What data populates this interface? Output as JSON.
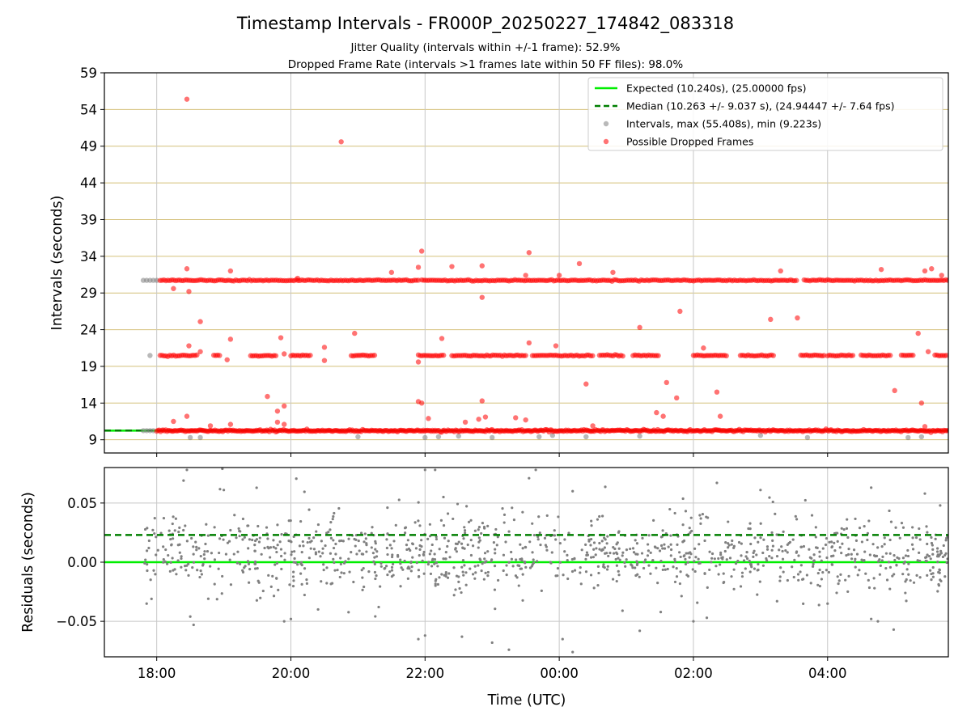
{
  "chart_data": [
    {
      "type": "scatter",
      "title": "Timestamp Intervals - FR000P_20250227_174842_083318",
      "subtitle_lines": [
        "Jitter Quality (intervals within +/-1 frame): 52.9%",
        "Dropped Frame Rate (intervals >1 frames late within 50 FF files): 98.0%"
      ],
      "ylabel": "Intervals (seconds)",
      "xlabel": "",
      "x_unit": "hours since 18:00 UTC",
      "xlim": [
        -0.78,
        11.8
      ],
      "ylim": [
        7.2,
        59
      ],
      "x_ticks": [
        0,
        2,
        4,
        6,
        8,
        10
      ],
      "x_tick_labels": [
        "18:00",
        "20:00",
        "22:00",
        "00:00",
        "02:00",
        "04:00"
      ],
      "y_ticks": [
        9,
        14,
        19,
        24,
        29,
        34,
        39,
        44,
        49,
        54,
        59
      ],
      "y_tick_labels": [
        "9",
        "14",
        "19",
        "24",
        "29",
        "34",
        "39",
        "44",
        "49",
        "54",
        "59"
      ],
      "grid": true,
      "legend_placement": "top-right",
      "legend": [
        {
          "label": "Expected (10.240s), (25.00000 fps)",
          "kind": "solid-line",
          "color": "#00ee00"
        },
        {
          "label": "Median (10.263 +/- 9.037 s), (24.94447 +/- 7.64 fps)",
          "kind": "dashed-line",
          "color": "#007f00"
        },
        {
          "label": "Intervals, max (55.408s), min (9.223s)",
          "kind": "marker",
          "color": "#808080"
        },
        {
          "label": "Possible Dropped Frames",
          "kind": "marker",
          "color": "#ff0000"
        }
      ],
      "expected_line": {
        "y": 10.24,
        "color": "#00ee00"
      },
      "median_line": {
        "y": 10.263,
        "color": "#007f00"
      },
      "series": [
        {
          "name": "Intervals, max (55.408s), min (9.223s)",
          "color": "#808080",
          "points": [
            [
              -0.2,
              30.72
            ],
            [
              -0.15,
              30.72
            ],
            [
              -0.1,
              30.72
            ],
            [
              -0.05,
              30.72
            ],
            [
              0.0,
              30.72
            ],
            [
              -0.2,
              10.24
            ],
            [
              -0.15,
              10.24
            ],
            [
              -0.1,
              10.24
            ],
            [
              -0.05,
              10.24
            ],
            [
              -0.1,
              20.48
            ],
            [
              0.5,
              9.3
            ],
            [
              0.65,
              9.3
            ],
            [
              3.0,
              9.4
            ],
            [
              4.0,
              9.3
            ],
            [
              4.2,
              9.4
            ],
            [
              4.5,
              9.5
            ],
            [
              5.0,
              9.3
            ],
            [
              5.7,
              9.4
            ],
            [
              5.9,
              9.6
            ],
            [
              6.4,
              9.4
            ],
            [
              7.2,
              9.5
            ],
            [
              9.0,
              9.6
            ],
            [
              9.7,
              9.3
            ],
            [
              11.2,
              9.3
            ],
            [
              11.4,
              9.4
            ]
          ]
        },
        {
          "name": "Possible Dropped Frames",
          "color": "#ff0000",
          "bands": [
            {
              "y": 10.24,
              "segments": [
                [
                  0.0,
                  11.8
                ]
              ]
            },
            {
              "y": 20.48,
              "segments": [
                [
                  0.05,
                  0.6
                ],
                [
                  0.85,
                  0.95
                ],
                [
                  1.4,
                  1.8
                ],
                [
                  2.0,
                  2.3
                ],
                [
                  2.9,
                  3.25
                ],
                [
                  3.9,
                  4.3
                ],
                [
                  4.4,
                  5.5
                ],
                [
                  5.6,
                  6.5
                ],
                [
                  6.6,
                  6.95
                ],
                [
                  7.1,
                  7.5
                ],
                [
                  8.0,
                  8.5
                ],
                [
                  8.7,
                  9.2
                ],
                [
                  9.6,
                  9.95
                ],
                [
                  10.0,
                  10.4
                ],
                [
                  10.5,
                  10.95
                ],
                [
                  11.1,
                  11.3
                ],
                [
                  11.6,
                  11.8
                ]
              ]
            },
            {
              "y": 30.72,
              "segments": [
                [
                  0.05,
                  3.9
                ],
                [
                  3.95,
                  9.55
                ],
                [
                  9.65,
                  11.8
                ]
              ]
            }
          ],
          "points": [
            [
              0.45,
              55.4
            ],
            [
              2.75,
              49.6
            ],
            [
              3.95,
              34.7
            ],
            [
              3.9,
              32.5
            ],
            [
              4.4,
              32.6
            ],
            [
              4.85,
              32.7
            ],
            [
              5.55,
              34.5
            ],
            [
              6.3,
              33.0
            ],
            [
              6.8,
              31.8
            ],
            [
              9.3,
              32.0
            ],
            [
              10.8,
              32.2
            ],
            [
              11.55,
              32.3
            ],
            [
              11.45,
              32.0
            ],
            [
              11.7,
              31.4
            ],
            [
              0.45,
              32.3
            ],
            [
              1.1,
              32.0
            ],
            [
              2.1,
              31.0
            ],
            [
              3.5,
              31.8
            ],
            [
              5.5,
              31.4
            ],
            [
              6.0,
              31.4
            ],
            [
              0.25,
              29.6
            ],
            [
              0.48,
              29.2
            ],
            [
              4.85,
              28.4
            ],
            [
              0.65,
              25.1
            ],
            [
              7.8,
              26.5
            ],
            [
              9.15,
              25.4
            ],
            [
              9.55,
              25.6
            ],
            [
              1.1,
              22.7
            ],
            [
              1.85,
              22.9
            ],
            [
              2.95,
              23.5
            ],
            [
              4.25,
              22.8
            ],
            [
              5.55,
              22.2
            ],
            [
              7.2,
              24.3
            ],
            [
              8.15,
              21.5
            ],
            [
              11.35,
              23.5
            ],
            [
              0.48,
              21.8
            ],
            [
              0.65,
              21.0
            ],
            [
              2.5,
              21.6
            ],
            [
              5.95,
              21.8
            ],
            [
              11.5,
              21.0
            ],
            [
              2.5,
              19.8
            ],
            [
              1.05,
              19.9
            ],
            [
              1.9,
              20.7
            ],
            [
              3.9,
              19.6
            ],
            [
              6.4,
              16.6
            ],
            [
              7.6,
              16.8
            ],
            [
              8.35,
              15.5
            ],
            [
              11.0,
              15.7
            ],
            [
              1.65,
              14.9
            ],
            [
              3.9,
              14.2
            ],
            [
              3.95,
              14.0
            ],
            [
              4.85,
              14.3
            ],
            [
              7.75,
              14.7
            ],
            [
              11.4,
              14.0
            ],
            [
              1.9,
              13.6
            ],
            [
              1.8,
              12.9
            ],
            [
              7.45,
              12.7
            ],
            [
              7.55,
              12.2
            ],
            [
              8.4,
              12.2
            ],
            [
              0.45,
              12.2
            ],
            [
              0.25,
              11.5
            ],
            [
              4.05,
              11.9
            ],
            [
              4.9,
              12.1
            ],
            [
              5.35,
              12.0
            ],
            [
              5.5,
              11.7
            ],
            [
              4.6,
              11.4
            ],
            [
              4.8,
              11.8
            ],
            [
              1.8,
              11.4
            ],
            [
              1.9,
              11.1
            ],
            [
              0.8,
              10.9
            ],
            [
              1.1,
              11.1
            ],
            [
              6.5,
              10.9
            ],
            [
              11.45,
              10.8
            ]
          ]
        }
      ]
    },
    {
      "type": "scatter",
      "xlabel": "Time (UTC)",
      "ylabel": "Residuals (seconds)",
      "x_unit": "hours since 18:00 UTC",
      "xlim": [
        -0.78,
        11.8
      ],
      "ylim": [
        -0.08,
        0.08
      ],
      "x_ticks": [
        0,
        2,
        4,
        6,
        8,
        10
      ],
      "x_tick_labels": [
        "18:00",
        "20:00",
        "22:00",
        "00:00",
        "02:00",
        "04:00"
      ],
      "y_ticks": [
        -0.05,
        0.0,
        0.05
      ],
      "y_tick_labels": [
        "−0.05",
        "0.00",
        "0.05"
      ],
      "grid": true,
      "expected_line": {
        "y": 0.0,
        "color": "#00ee00"
      },
      "median_line": {
        "y": 0.023,
        "color": "#007f00"
      },
      "series": [
        {
          "color": "#808080",
          "x_range": [
            -0.2,
            11.8
          ],
          "count": 1150,
          "core_spread": 0.016,
          "center": 0.006,
          "points": [
            [
              0.45,
              0.078
            ],
            [
              1.0,
              0.061
            ],
            [
              4.0,
              0.078
            ],
            [
              4.15,
              0.078
            ],
            [
              5.65,
              0.078
            ],
            [
              5.55,
              0.071
            ],
            [
              6.2,
              0.06
            ],
            [
              0.4,
              0.069
            ],
            [
              8.35,
              0.067
            ],
            [
              9.0,
              0.061
            ],
            [
              10.65,
              0.063
            ],
            [
              11.45,
              0.058
            ],
            [
              5.25,
              -0.074
            ],
            [
              6.2,
              -0.076
            ],
            [
              6.05,
              -0.065
            ],
            [
              4.0,
              -0.062
            ],
            [
              3.9,
              -0.065
            ],
            [
              4.55,
              -0.063
            ],
            [
              7.2,
              -0.058
            ],
            [
              8.0,
              -0.05
            ],
            [
              8.2,
              -0.047
            ],
            [
              10.0,
              -0.035
            ],
            [
              10.65,
              -0.048
            ],
            [
              10.75,
              -0.05
            ],
            [
              1.9,
              -0.05
            ],
            [
              0.55,
              -0.053
            ],
            [
              0.5,
              -0.046
            ],
            [
              -0.15,
              -0.035
            ],
            [
              2.0,
              -0.048
            ],
            [
              5.0,
              -0.068
            ]
          ]
        }
      ]
    }
  ]
}
